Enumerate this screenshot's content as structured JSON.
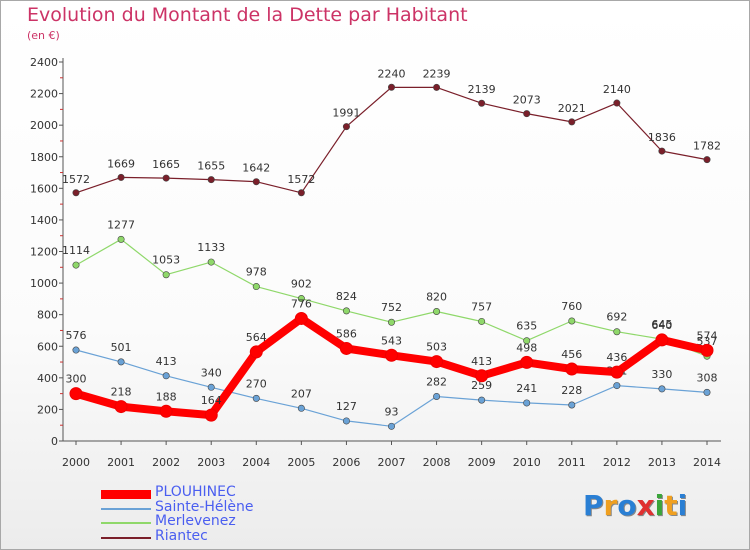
{
  "title": "Evolution du Montant de la Dette par Habitant",
  "unit_label": "(en €)",
  "logo": {
    "text": "Proxiti",
    "letters": [
      {
        "ch": "P",
        "color": "#2a7fd4"
      },
      {
        "ch": "r",
        "color": "#f0a020"
      },
      {
        "ch": "o",
        "color": "#2a7fd4"
      },
      {
        "ch": "x",
        "color": "#e03030"
      },
      {
        "ch": "i",
        "color": "#3aa53a"
      },
      {
        "ch": "t",
        "color": "#f0a020"
      },
      {
        "ch": "i",
        "color": "#2a7fd4"
      }
    ]
  },
  "chart_data": {
    "type": "line",
    "title": "Evolution du Montant de la Dette par Habitant",
    "ylabel": "(en €)",
    "xlabel": "",
    "ylim": [
      0,
      2400
    ],
    "yticks": [
      0,
      200,
      400,
      600,
      800,
      1000,
      1200,
      1400,
      1600,
      1800,
      2000,
      2200,
      2400
    ],
    "grid": false,
    "legend_position": "bottom-left",
    "x": [
      "2000",
      "2001",
      "2002",
      "2003",
      "2004",
      "2005",
      "2006",
      "2007",
      "2008",
      "2009",
      "2010",
      "2011",
      "2012",
      "2013",
      "2014"
    ],
    "series": [
      {
        "name": "Riantec",
        "color": "#7a1f2a",
        "values": [
          1572,
          1669,
          1665,
          1655,
          1642,
          1572,
          1991,
          2240,
          2239,
          2139,
          2073,
          2021,
          2140,
          1836,
          1782
        ]
      },
      {
        "name": "Merlevenez",
        "color": "#8fd86a",
        "values": [
          1114,
          1277,
          1053,
          1133,
          978,
          902,
          824,
          752,
          820,
          757,
          635,
          760,
          692,
          645,
          537
        ]
      },
      {
        "name": "Sainte-Hélène",
        "color": "#6aa2d6",
        "values": [
          576,
          501,
          413,
          340,
          270,
          207,
          127,
          93,
          282,
          259,
          241,
          228,
          351,
          330,
          308
        ]
      },
      {
        "name": "PLOUHINEC",
        "color": "#ff0000",
        "values": [
          300,
          218,
          188,
          164,
          564,
          776,
          586,
          543,
          503,
          413,
          498,
          456,
          436,
          640,
          574
        ]
      }
    ]
  },
  "legend": [
    {
      "name": "PLOUHINEC",
      "color": "#ff0000",
      "text_color": "#4a5ef0"
    },
    {
      "name": "Sainte-Hélène",
      "color": "#6aa2d6",
      "text_color": "#4a5ef0"
    },
    {
      "name": "Merlevenez",
      "color": "#8fd86a",
      "text_color": "#4a5ef0"
    },
    {
      "name": "Riantec",
      "color": "#7a1f2a",
      "text_color": "#4a5ef0"
    }
  ]
}
